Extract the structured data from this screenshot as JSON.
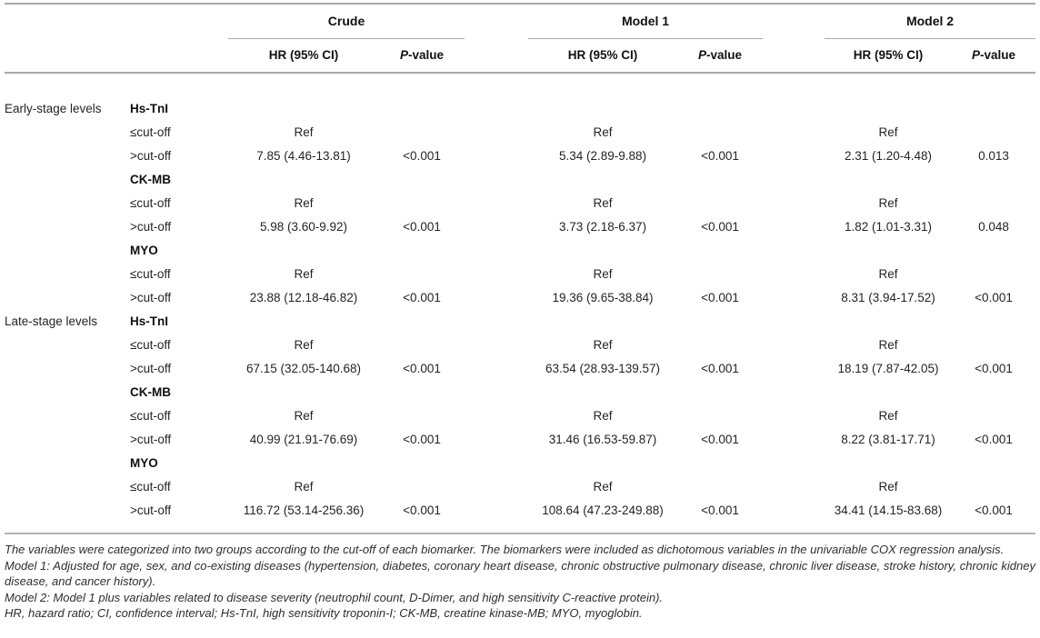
{
  "table": {
    "groups": [
      "Crude",
      "Model 1",
      "Model 2"
    ],
    "sub_headers": {
      "hr": "HR (95% CI)",
      "p_italic": "P",
      "p_rest": "-value"
    },
    "rows": [
      {
        "stage": "Early-stage levels",
        "label": "Hs-TnI"
      },
      {
        "stage": "",
        "label": "≤cut-off",
        "c_hr": "Ref",
        "c_p": "",
        "m1_hr": "Ref",
        "m1_p": "",
        "m2_hr": "Ref",
        "m2_p": ""
      },
      {
        "stage": "",
        "label": ">cut-off",
        "c_hr": "7.85 (4.46-13.81)",
        "c_p": "<0.001",
        "m1_hr": "5.34 (2.89-9.88)",
        "m1_p": "<0.001",
        "m2_hr": "2.31 (1.20-4.48)",
        "m2_p": "0.013"
      },
      {
        "stage": "",
        "label": "CK-MB"
      },
      {
        "stage": "",
        "label": "≤cut-off",
        "c_hr": "Ref",
        "c_p": "",
        "m1_hr": "Ref",
        "m1_p": "",
        "m2_hr": "Ref",
        "m2_p": ""
      },
      {
        "stage": "",
        "label": ">cut-off",
        "c_hr": "5.98 (3.60-9.92)",
        "c_p": "<0.001",
        "m1_hr": "3.73 (2.18-6.37)",
        "m1_p": "<0.001",
        "m2_hr": "1.82 (1.01-3.31)",
        "m2_p": "0.048"
      },
      {
        "stage": "",
        "label": "MYO"
      },
      {
        "stage": "",
        "label": "≤cut-off",
        "c_hr": "Ref",
        "c_p": "",
        "m1_hr": "Ref",
        "m1_p": "",
        "m2_hr": "Ref",
        "m2_p": ""
      },
      {
        "stage": "",
        "label": ">cut-off",
        "c_hr": "23.88 (12.18-46.82)",
        "c_p": "<0.001",
        "m1_hr": "19.36 (9.65-38.84)",
        "m1_p": "<0.001",
        "m2_hr": "8.31 (3.94-17.52)",
        "m2_p": "<0.001"
      },
      {
        "stage": "Late-stage levels",
        "label": "Hs-TnI"
      },
      {
        "stage": "",
        "label": "≤cut-off",
        "c_hr": "Ref",
        "c_p": "",
        "m1_hr": "Ref",
        "m1_p": "",
        "m2_hr": "Ref",
        "m2_p": ""
      },
      {
        "stage": "",
        "label": ">cut-off",
        "c_hr": "67.15 (32.05-140.68)",
        "c_p": "<0.001",
        "m1_hr": "63.54 (28.93-139.57)",
        "m1_p": "<0.001",
        "m2_hr": "18.19 (7.87-42.05)",
        "m2_p": "<0.001"
      },
      {
        "stage": "",
        "label": "CK-MB"
      },
      {
        "stage": "",
        "label": "≤cut-off",
        "c_hr": "Ref",
        "c_p": "",
        "m1_hr": "Ref",
        "m1_p": "",
        "m2_hr": "Ref",
        "m2_p": ""
      },
      {
        "stage": "",
        "label": ">cut-off",
        "c_hr": "40.99 (21.91-76.69)",
        "c_p": "<0.001",
        "m1_hr": "31.46 (16.53-59.87)",
        "m1_p": "<0.001",
        "m2_hr": "8.22 (3.81-17.71)",
        "m2_p": "<0.001"
      },
      {
        "stage": "",
        "label": "MYO"
      },
      {
        "stage": "",
        "label": "≤cut-off",
        "c_hr": "Ref",
        "c_p": "",
        "m1_hr": "Ref",
        "m1_p": "",
        "m2_hr": "Ref",
        "m2_p": ""
      },
      {
        "stage": "",
        "label": ">cut-off",
        "c_hr": "116.72 (53.14-256.36)",
        "c_p": "<0.001",
        "m1_hr": "108.64 (47.23-249.88)",
        "m1_p": "<0.001",
        "m2_hr": "34.41 (14.15-83.68)",
        "m2_p": "<0.001"
      }
    ]
  },
  "footnotes": [
    "The variables were categorized into two groups according to the cut-off of each biomarker. The biomarkers were included as dichotomous variables in the univariable COX regression analysis.",
    "Model 1: Adjusted for age, sex, and co-existing diseases (hypertension, diabetes, coronary heart disease, chronic obstructive pulmonary disease, chronic liver disease, stroke history, chronic kidney disease, and cancer history).",
    "Model 2: Model 1 plus variables related to disease severity (neutrophil count, D-Dimer, and high sensitivity C-reactive protein).",
    "HR, hazard ratio; CI, confidence interval; Hs-TnI, high sensitivity troponin-I; CK-MB, creatine kinase-MB; MYO, myoglobin."
  ]
}
